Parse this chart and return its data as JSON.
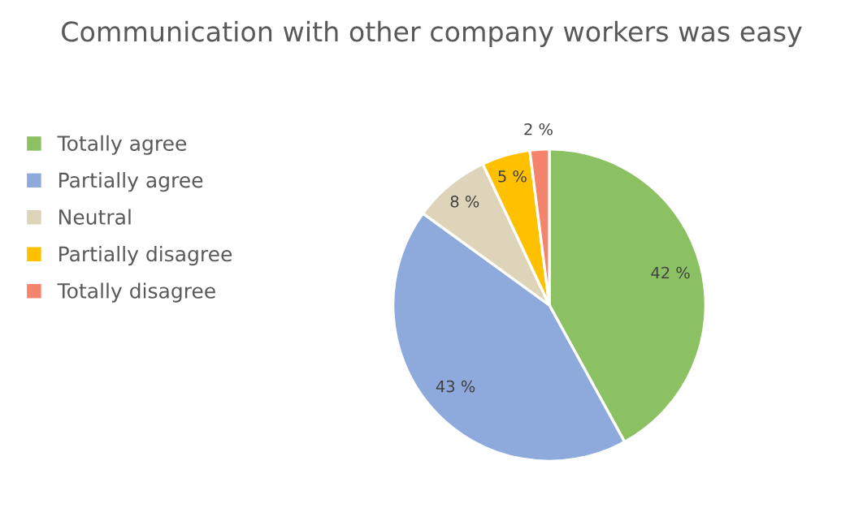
{
  "chart_data": {
    "type": "pie",
    "title": "Communication with other company workers was easy",
    "categories": [
      "Totally agree",
      "Partially agree",
      "Neutral",
      "Partially disagree",
      "Totally disagree"
    ],
    "values": [
      42,
      43,
      8,
      5,
      2
    ],
    "colors": [
      "#8bc163",
      "#8eaadc",
      "#ddd4b9",
      "#ffc000",
      "#f4846b"
    ],
    "value_labels": [
      "42 %",
      "43 %",
      "8 %",
      "5 %",
      "2 %"
    ],
    "legend": "left"
  }
}
